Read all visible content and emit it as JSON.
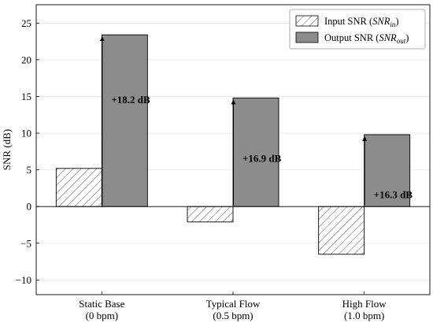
{
  "chart_data": {
    "type": "bar",
    "title": "",
    "ylabel": "SNR (dB)",
    "xlabel": "",
    "ylim": [
      -12,
      27.5
    ],
    "yticks": [
      -10,
      -5,
      0,
      5,
      10,
      15,
      20,
      25
    ],
    "grid": true,
    "legend_position": "top-right",
    "categories": [
      {
        "line1": "Static Base",
        "line2": "(0 bpm)"
      },
      {
        "line1": "Typical Flow",
        "line2": "(0.5 bpm)"
      },
      {
        "line1": "High Flow",
        "line2": "(1.0 bpm)"
      }
    ],
    "series": [
      {
        "legend_main": "Input SNR (",
        "legend_sym": "SNR",
        "legend_sub": "in",
        "legend_close": ")",
        "style": "hatched",
        "color": "#ffffff",
        "values": [
          5.2,
          -2.1,
          -6.5
        ]
      },
      {
        "legend_main": "Output SNR (",
        "legend_sym": "SNR",
        "legend_sub": "out",
        "legend_close": ")",
        "style": "solid",
        "color": "#8c8c8c",
        "values": [
          23.4,
          14.8,
          9.8
        ]
      }
    ],
    "gain_labels": [
      "+18.2 dB",
      "+16.9 dB",
      "+16.3 dB"
    ],
    "gain_label_y": [
      14.5,
      6.5,
      1.6
    ]
  }
}
